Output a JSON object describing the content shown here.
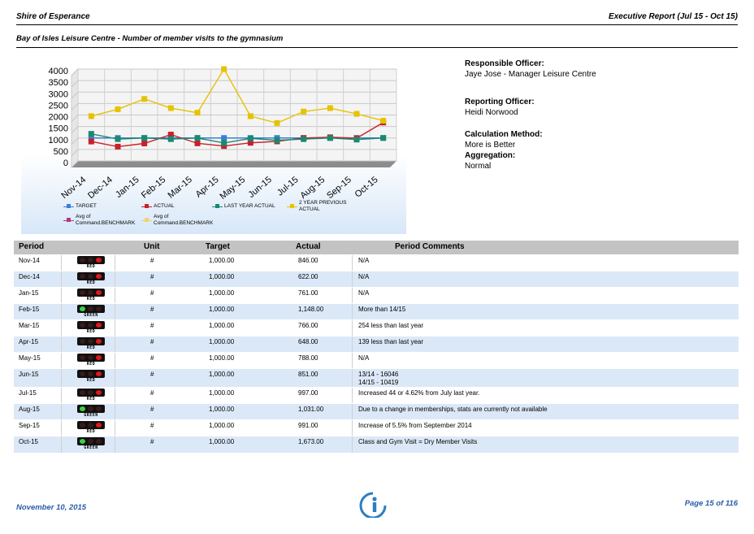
{
  "header": {
    "org": "Shire of Esperance",
    "report": "Executive Report (Jul 15 - Oct 15)"
  },
  "subtitle": "Bay of Isles Leisure Centre - Number of member visits to the gymnasium",
  "info": {
    "responsible_label": "Responsible Officer:",
    "responsible_value": "Jaye Jose - Manager Leisure Centre",
    "reporting_label": "Reporting Officer:",
    "reporting_value": "Heidi Norwood",
    "calc_label": "Calculation Method:",
    "calc_value": "More is Better",
    "agg_label": "Aggregation:",
    "agg_value": "Normal"
  },
  "chart_data": {
    "type": "line",
    "categories": [
      "Nov-14",
      "Dec-14",
      "Jan-15",
      "Feb-15",
      "Mar-15",
      "Apr-15",
      "May-15",
      "Jun-15",
      "Jul-15",
      "Aug-15",
      "Sep-15",
      "Oct-15"
    ],
    "ylim": [
      0,
      4000
    ],
    "yticks": [
      0,
      500,
      1000,
      1500,
      2000,
      2500,
      3000,
      3500,
      4000
    ],
    "grid": true,
    "series": [
      {
        "name": "TARGET",
        "color": "#3a7fd5",
        "values": [
          1000,
          1000,
          1000,
          1000,
          1000,
          1000,
          1000,
          1000,
          1000,
          1000,
          1000,
          1000
        ]
      },
      {
        "name": "ACTUAL",
        "color": "#c8202a",
        "values": [
          846,
          622,
          761,
          1148,
          766,
          648,
          788,
          851,
          997,
          1031,
          991,
          1673
        ]
      },
      {
        "name": "LAST YEAR ACTUAL",
        "color": "#1a8a6e",
        "values": [
          1180,
          950,
          1000,
          950,
          1000,
          780,
          980,
          900,
          950,
          1000,
          930,
          1000
        ]
      },
      {
        "name": "2 YEAR PREVIOUS ACTUAL",
        "color": "#e6c200",
        "values": [
          1950,
          2250,
          2700,
          2300,
          2100,
          4000,
          1950,
          1650,
          2150,
          2300,
          2050,
          1750
        ]
      }
    ],
    "legend_extra": [
      {
        "name": "Avg of Command.BENCHMARK",
        "color": "#b03a7a"
      },
      {
        "name": "Avg of Command.BENCHMARK",
        "color": "#f2d36b"
      }
    ],
    "legend_position": "bottom"
  },
  "table": {
    "headers": {
      "period": "Period",
      "unit": "Unit",
      "target": "Target",
      "actual": "Actual",
      "comments": "Period Comments"
    },
    "rows": [
      {
        "period": "Nov-14",
        "status": "RED",
        "unit": "#",
        "target": "1,000.00",
        "actual": "846.00",
        "comment": "N/A",
        "comment2": ""
      },
      {
        "period": "Dec-14",
        "status": "RED",
        "unit": "#",
        "target": "1,000.00",
        "actual": "622.00",
        "comment": "N/A",
        "comment2": ""
      },
      {
        "period": "Jan-15",
        "status": "RED",
        "unit": "#",
        "target": "1,000.00",
        "actual": "761.00",
        "comment": "N/A",
        "comment2": ""
      },
      {
        "period": "Feb-15",
        "status": "GREEN",
        "unit": "#",
        "target": "1,000.00",
        "actual": "1,148.00",
        "comment": "More than 14/15",
        "comment2": ""
      },
      {
        "period": "Mar-15",
        "status": "RED",
        "unit": "#",
        "target": "1,000.00",
        "actual": "766.00",
        "comment": "254 less than last year",
        "comment2": ""
      },
      {
        "period": "Apr-15",
        "status": "RED",
        "unit": "#",
        "target": "1,000.00",
        "actual": "648.00",
        "comment": "139 less than last year",
        "comment2": ""
      },
      {
        "period": "May-15",
        "status": "RED",
        "unit": "#",
        "target": "1,000.00",
        "actual": "788.00",
        "comment": "N/A",
        "comment2": ""
      },
      {
        "period": "Jun-15",
        "status": "RED",
        "unit": "#",
        "target": "1,000.00",
        "actual": "851.00",
        "comment": "13/14 - 16046",
        "comment2": "14/15 - 10419"
      },
      {
        "period": "Jul-15",
        "status": "RED",
        "unit": "#",
        "target": "1,000.00",
        "actual": "997.00",
        "comment": "Increased 44 or 4.62% from July last year.",
        "comment2": ""
      },
      {
        "period": "Aug-15",
        "status": "GREEN",
        "unit": "#",
        "target": "1,000.00",
        "actual": "1,031.00",
        "comment": "Due to a change in memberships, stats are currently not available",
        "comment2": ""
      },
      {
        "period": "Sep-15",
        "status": "RED",
        "unit": "#",
        "target": "1,000.00",
        "actual": "991.00",
        "comment": "Increase of 5.5% from September 2014",
        "comment2": ""
      },
      {
        "period": "Oct-15",
        "status": "GREEN",
        "unit": "#",
        "target": "1,000.00",
        "actual": "1,673.00",
        "comment": "Class and Gym Visit = Dry Member Visits",
        "comment2": ""
      }
    ]
  },
  "footer": {
    "date": "November 10, 2015",
    "page": "Page 15 of 116"
  }
}
